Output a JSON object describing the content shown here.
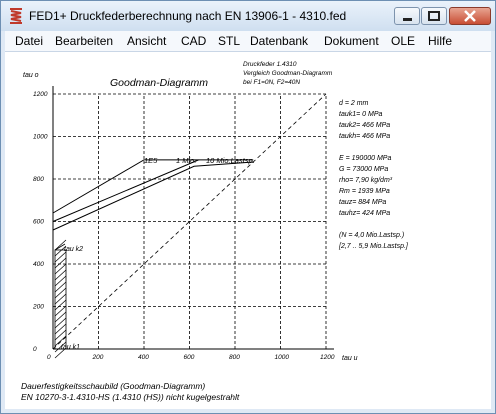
{
  "window": {
    "title": "FED1+  Druckfederberechnung nach EN 13906-1  -  4310.fed"
  },
  "menu": [
    {
      "label": "Datei"
    },
    {
      "label": "Bearbeiten"
    },
    {
      "label": "Ansicht"
    },
    {
      "label": "CAD"
    },
    {
      "label": "STL"
    },
    {
      "label": "Datenbank"
    },
    {
      "label": "Dokument"
    },
    {
      "label": "OLE"
    },
    {
      "label": "Hilfe"
    }
  ],
  "chart_data": {
    "type": "line",
    "title": "Goodman-Diagramm",
    "ylabel": "tau o",
    "xlabel": "tau u",
    "xlim": [
      0,
      1200
    ],
    "ylim": [
      0,
      1200
    ],
    "xticks": [
      "0",
      "200",
      "400",
      "600",
      "800",
      "1000",
      "1200"
    ],
    "yticks": [
      "0",
      "200",
      "400",
      "600",
      "800",
      "1000",
      "1200"
    ],
    "grid": true,
    "series": [
      {
        "name": "1E5",
        "points": [
          [
            0,
            640
          ],
          [
            400,
            890
          ],
          [
            880,
            890
          ]
        ]
      },
      {
        "name": "1 Mio",
        "points": [
          [
            0,
            600
          ],
          [
            640,
            890
          ]
        ]
      },
      {
        "name": "10 Mio.Lastsp.",
        "points": [
          [
            0,
            560
          ],
          [
            620,
            860
          ],
          [
            880,
            880
          ]
        ]
      }
    ],
    "diagonal": [
      [
        0,
        0
      ],
      [
        1200,
        1200
      ]
    ],
    "working_range": {
      "tau_u": 0,
      "tau_o_min": 0,
      "tau_o_max": 466
    },
    "annotations": {
      "tauk2": "tau k2",
      "tauk1": "tau k1",
      "series_labels": [
        "1E5",
        "1 Mio.",
        "10 Mio.Lastsp."
      ]
    }
  },
  "info": {
    "header": [
      "Druckfeder 1.4310",
      "Vergleich Goodman-Diagramm",
      "bei F1=0N, F2=40N"
    ],
    "params": [
      "d  = 2 mm",
      "tauk1=   0 MPa",
      "tauk2= 466 MPa",
      "taukh= 466 MPa",
      "",
      "E = 190000 MPa",
      "G = 73000 MPa",
      "rho= 7,90 kg/dm³",
      "Rm = 1939 MPa",
      "tauz= 884 MPa",
      "tauhz= 424 MPa",
      "",
      "(N = 4,0 Mio.Lastsp.)",
      "[2,7 .. 5,9 Mio.Lastsp.]"
    ],
    "footer": [
      "Dauerfestigkeitsschaubild (Goodman-Diagramm)",
      "EN 10270-3-1.4310-HS (1.4310 (HS)) nicht kugelgestrahlt"
    ]
  }
}
